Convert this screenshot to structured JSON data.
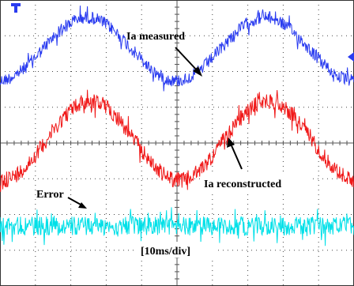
{
  "labels": {
    "measured": "Ia measured",
    "reconstructed": "Ia reconstructed",
    "error": "Error"
  },
  "time_scale": "[10ms/div]"
}
